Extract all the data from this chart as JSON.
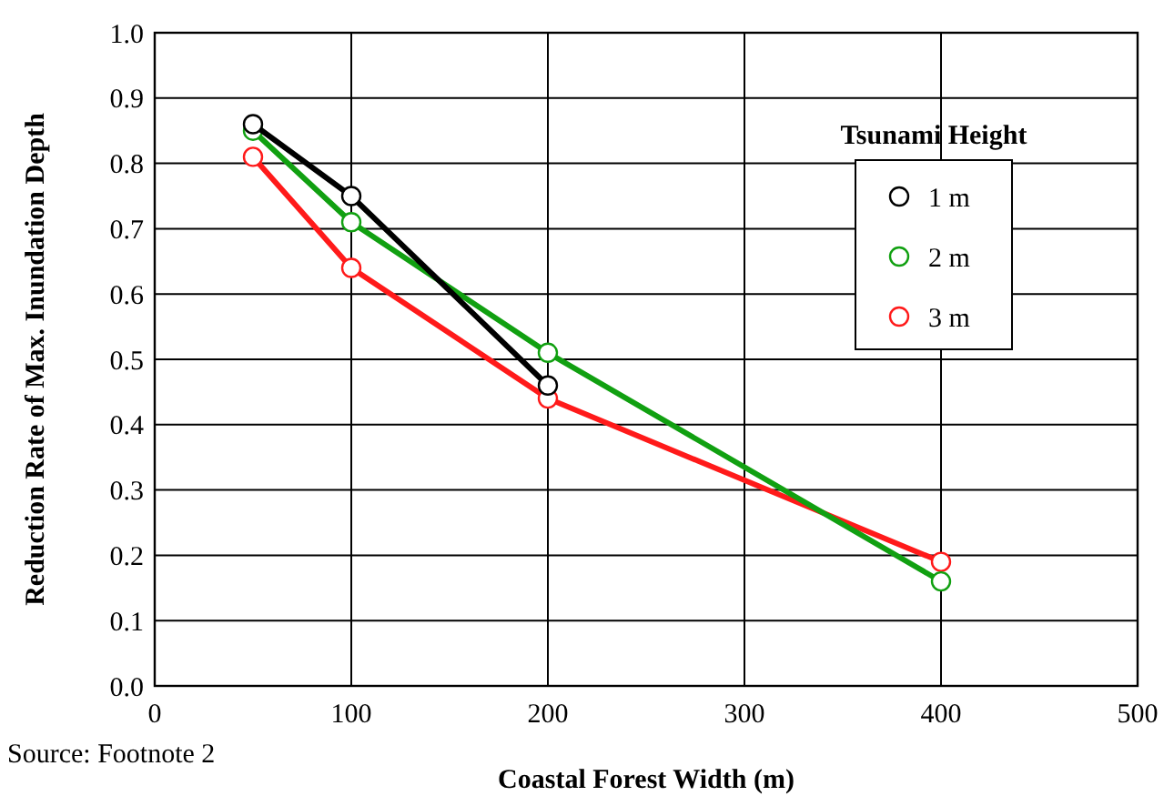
{
  "chart_data": {
    "type": "line",
    "xlabel": "Coastal Forest Width (m)",
    "ylabel": "Reduction Rate of Max. Inundation Depth",
    "legend_title": "Tsunami Height",
    "x": [
      50,
      100,
      200,
      400
    ],
    "series": [
      {
        "name": "1 m",
        "color": "#000000",
        "values": [
          0.86,
          0.75,
          0.46,
          null
        ]
      },
      {
        "name": "2 m",
        "color": "#11a011",
        "values": [
          0.85,
          0.71,
          0.51,
          0.16
        ]
      },
      {
        "name": "3 m",
        "color": "#ff1a1a",
        "values": [
          0.81,
          0.64,
          0.44,
          0.19
        ]
      }
    ],
    "xlim": [
      0,
      500
    ],
    "xticks": [
      0,
      100,
      200,
      300,
      400,
      500
    ],
    "ylim": [
      0,
      1
    ],
    "yticks": [
      {
        "value": 0,
        "label": "0.0"
      },
      0.1,
      0.2,
      0.3,
      0.4,
      0.5,
      0.6,
      0.7,
      0.8,
      0.9,
      {
        "value": 1,
        "label": "1.0"
      }
    ],
    "grid": true,
    "legend": "right",
    "marker": "circle",
    "line_style": "solid",
    "annotations": [
      "Source: Footnote 2"
    ]
  }
}
